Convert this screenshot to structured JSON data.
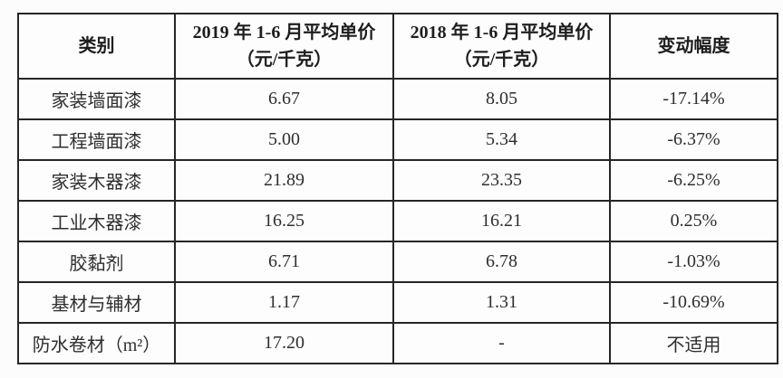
{
  "document": {
    "type": "scanned-table",
    "text_color": "#2e2e2e",
    "border_color": "#262626",
    "background_color": "#fcfcfc"
  },
  "table": {
    "header": [
      {
        "line1": "类别",
        "line2": ""
      },
      {
        "line1": "2019 年 1-6 月平均单价",
        "line2": "（元/千克）"
      },
      {
        "line1": "2018 年 1-6 月平均单价",
        "line2": "（元/千克）"
      },
      {
        "line1": "变动幅度",
        "line2": ""
      }
    ],
    "rows": [
      {
        "category": "家装墙面漆",
        "avg_price_2019": "6.67",
        "avg_price_2018": "8.05",
        "change": "-17.14%"
      },
      {
        "category": "工程墙面漆",
        "avg_price_2019": "5.00",
        "avg_price_2018": "5.34",
        "change": "-6.37%"
      },
      {
        "category": "家装木器漆",
        "avg_price_2019": "21.89",
        "avg_price_2018": "23.35",
        "change": "-6.25%"
      },
      {
        "category": "工业木器漆",
        "avg_price_2019": "16.25",
        "avg_price_2018": "16.21",
        "change": "0.25%"
      },
      {
        "category": "胶黏剂",
        "avg_price_2019": "6.71",
        "avg_price_2018": "6.78",
        "change": "-1.03%"
      },
      {
        "category": "基材与辅材",
        "avg_price_2019": "1.17",
        "avg_price_2018": "1.31",
        "change": "-10.69%"
      },
      {
        "category": "防水卷材（m²）",
        "avg_price_2019": "17.20",
        "avg_price_2018": "-",
        "change": "不适用"
      }
    ]
  },
  "chart_data": {
    "type": "table",
    "columns": [
      "类别",
      "2019 年 1-6 月平均单价（元/千克）",
      "2018 年 1-6 月平均单价（元/千克）",
      "变动幅度"
    ],
    "rows": [
      [
        "家装墙面漆",
        "6.67",
        "8.05",
        "-17.14%"
      ],
      [
        "工程墙面漆",
        "5.00",
        "5.34",
        "-6.37%"
      ],
      [
        "家装木器漆",
        "21.89",
        "23.35",
        "-6.25%"
      ],
      [
        "工业木器漆",
        "16.25",
        "16.21",
        "0.25%"
      ],
      [
        "胶黏剂",
        "6.71",
        "6.78",
        "-1.03%"
      ],
      [
        "基材与辅材",
        "1.17",
        "1.31",
        "-10.69%"
      ],
      [
        "防水卷材（m²）",
        "17.20",
        "-",
        "不适用"
      ]
    ]
  }
}
